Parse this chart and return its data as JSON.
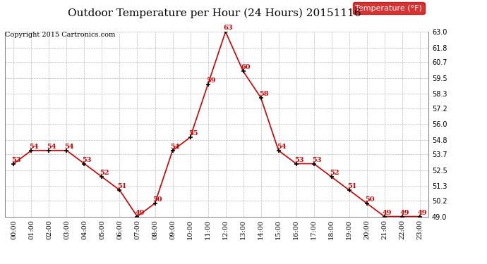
{
  "title": "Outdoor Temperature per Hour (24 Hours) 20151116",
  "copyright_text": "Copyright 2015 Cartronics.com",
  "legend_label": "Temperature (°F)",
  "hours": [
    "00:00",
    "01:00",
    "02:00",
    "03:00",
    "04:00",
    "05:00",
    "06:00",
    "07:00",
    "08:00",
    "09:00",
    "10:00",
    "11:00",
    "12:00",
    "13:00",
    "14:00",
    "15:00",
    "16:00",
    "17:00",
    "18:00",
    "19:00",
    "20:00",
    "21:00",
    "22:00",
    "23:00"
  ],
  "temperatures": [
    53,
    54,
    54,
    54,
    53,
    52,
    51,
    49,
    50,
    54,
    55,
    59,
    63,
    60,
    58,
    54,
    53,
    53,
    52,
    51,
    50,
    49,
    49,
    49
  ],
  "line_color": "#cc0000",
  "marker_color": "#000000",
  "label_color": "#cc0000",
  "background_color": "#ffffff",
  "grid_color": "#bbbbbb",
  "legend_bg": "#cc0000",
  "legend_text_color": "#ffffff",
  "title_color": "#000000",
  "copyright_color": "#000000",
  "ylim_min": 49.0,
  "ylim_max": 63.0,
  "yticks": [
    49.0,
    50.2,
    51.3,
    52.5,
    53.7,
    54.8,
    56.0,
    57.2,
    58.3,
    59.5,
    60.7,
    61.8,
    63.0
  ],
  "title_fontsize": 11,
  "label_fontsize": 7,
  "tick_fontsize": 7,
  "copyright_fontsize": 7,
  "legend_fontsize": 8
}
